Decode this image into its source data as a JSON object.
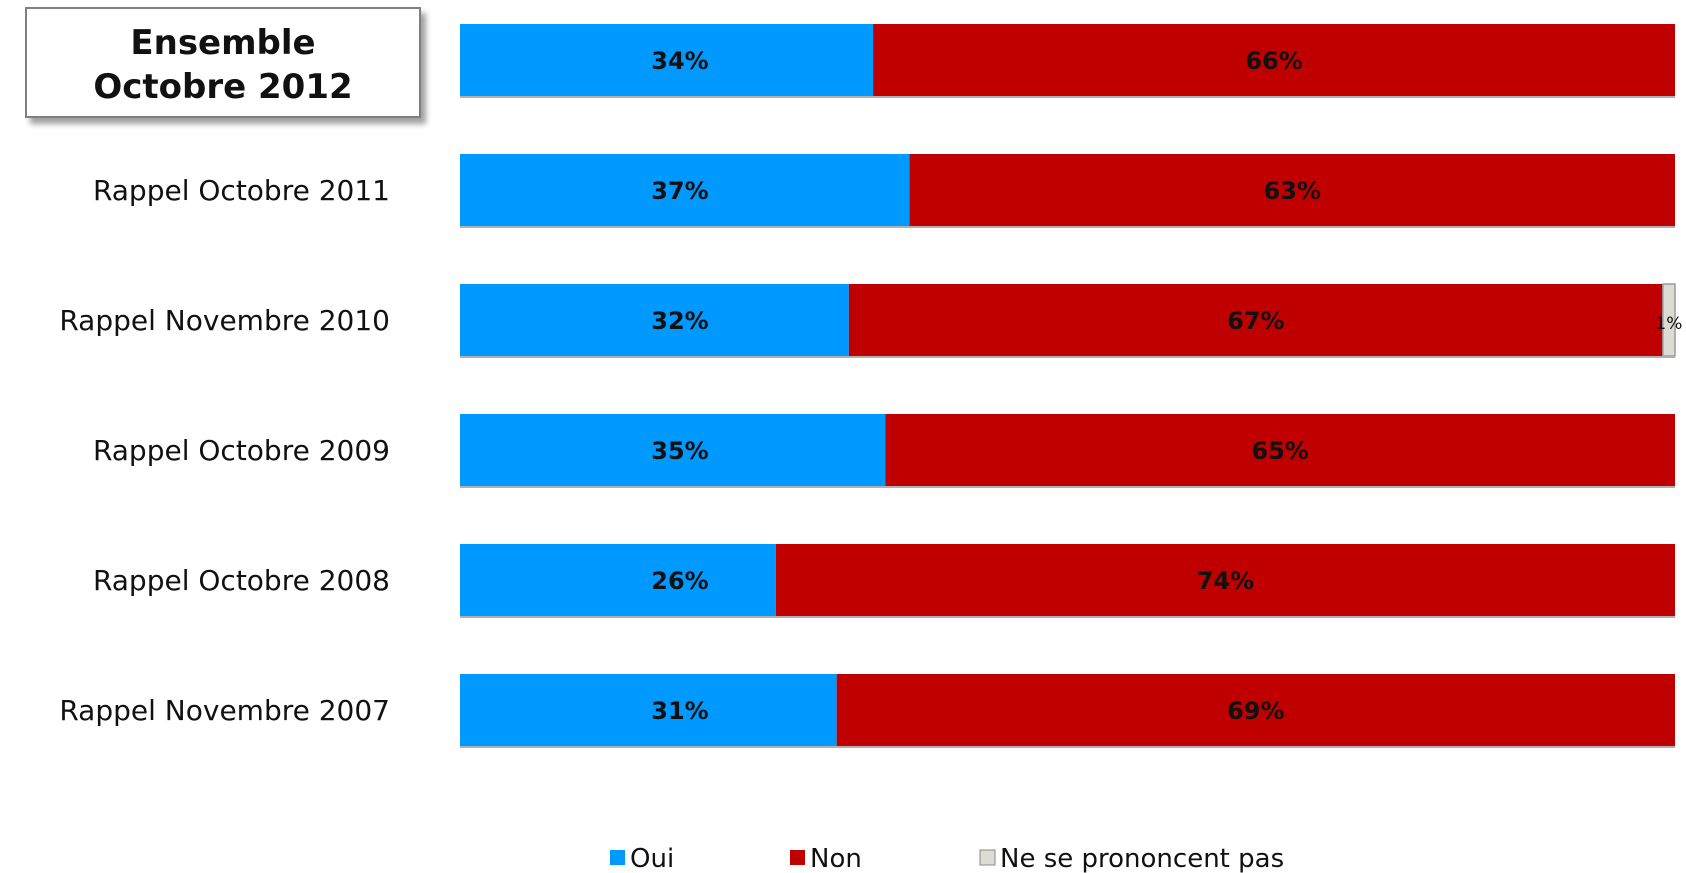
{
  "chart_data": {
    "type": "bar",
    "orientation": "horizontal",
    "stacked": true,
    "percent": true,
    "categories": [
      "Ensemble Octobre 2012",
      "Rappel Octobre 2011",
      "Rappel Novembre 2010",
      "Rappel Octobre 2009",
      "Rappel Octobre 2008",
      "Rappel Novembre 2007"
    ],
    "highlight_category": {
      "lines": [
        "Ensemble",
        "Octobre 2012"
      ]
    },
    "series": [
      {
        "name": "Oui",
        "color": "#0099ff",
        "values": [
          34,
          37,
          32,
          35,
          26,
          31
        ]
      },
      {
        "name": "Non",
        "color": "#c00000",
        "values": [
          66,
          63,
          67,
          65,
          74,
          69
        ]
      },
      {
        "name": "Ne se prononcent pas",
        "color": "#dcdcd4",
        "values": [
          0,
          0,
          1,
          0,
          0,
          0
        ]
      }
    ],
    "data_labels": [
      [
        "34%",
        "37%",
        "32%",
        "35%",
        "26%",
        "31%"
      ],
      [
        "66%",
        "63%",
        "67%",
        "65%",
        "74%",
        "69%"
      ],
      [
        "",
        "",
        "1%",
        "",
        "",
        ""
      ]
    ],
    "xlim": [
      0,
      100
    ],
    "grid": false,
    "legend_position": "bottom"
  }
}
